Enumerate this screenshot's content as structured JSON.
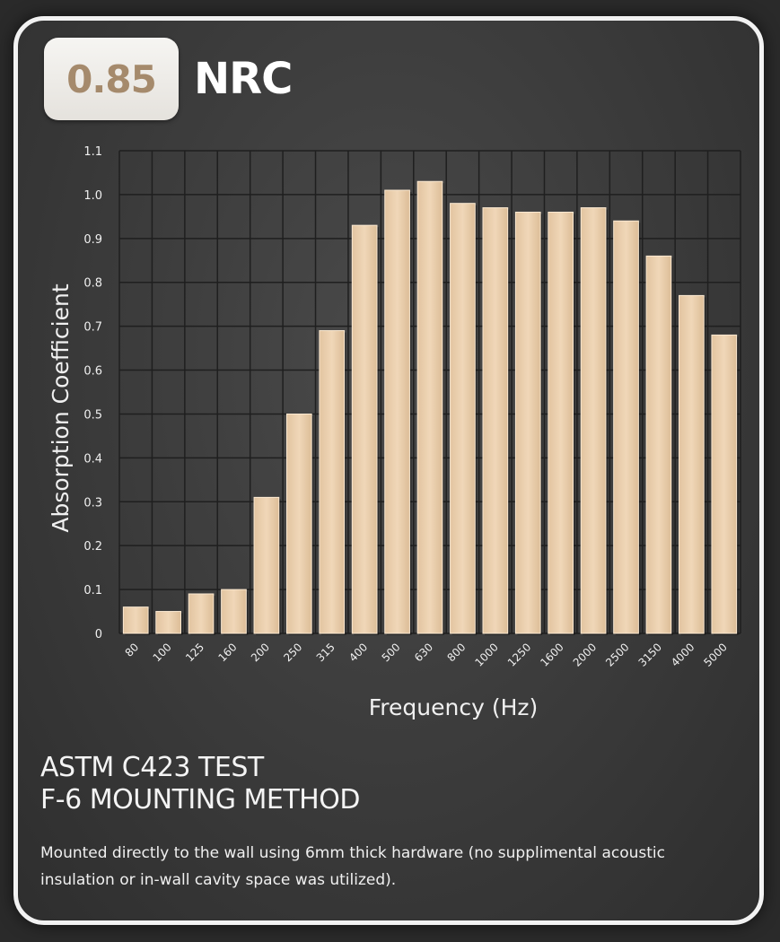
{
  "nrc": {
    "value": "0.85",
    "label": "NRC"
  },
  "chart_data": {
    "type": "bar",
    "xlabel": "Frequency (Hz)",
    "ylabel": "Absorption Coefficient",
    "ylim": [
      0,
      1.1
    ],
    "yticks": [
      "0",
      "0.1",
      "0.2",
      "0.3",
      "0.4",
      "0.5",
      "0.6",
      "0.7",
      "0.8",
      "0.9",
      "1.0",
      "1.1"
    ],
    "categories": [
      "80",
      "100",
      "125",
      "160",
      "200",
      "250",
      "315",
      "400",
      "500",
      "630",
      "800",
      "1000",
      "1250",
      "1600",
      "2000",
      "2500",
      "3150",
      "4000",
      "5000"
    ],
    "values": [
      0.06,
      0.05,
      0.09,
      0.1,
      0.31,
      0.5,
      0.69,
      0.93,
      1.01,
      1.03,
      0.98,
      0.97,
      0.96,
      0.96,
      0.97,
      0.94,
      0.86,
      0.77,
      0.68
    ],
    "grid": true,
    "legend": "none",
    "colors": {
      "bar": "#ebcfae",
      "grid": "#1f1f1f",
      "text": "#f0f0f0"
    }
  },
  "test": {
    "title_line1": "ASTM C423 TEST",
    "title_line2": "F-6 MOUNTING METHOD",
    "description": "Mounted directly to the wall using 6mm thick hardware (no supplimental acoustic insulation or in-wall cavity space was utilized)."
  }
}
